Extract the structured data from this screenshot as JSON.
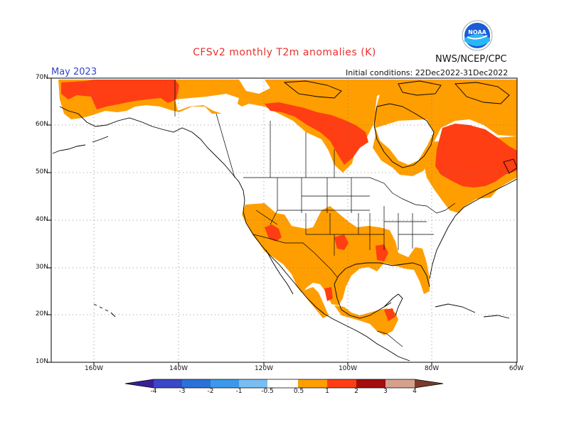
{
  "header": {
    "title": "CFSv2 monthly T2m anomalies (K)",
    "org": "NWS/NCEP/CPC",
    "month": "May 2023",
    "initial_conditions": "Initial conditions: 22Dec2022-31Dec2022"
  },
  "logo": {
    "name": "noaa-logo",
    "text": "NOAA"
  },
  "axes": {
    "lat_labels": [
      "70N",
      "60N",
      "50N",
      "40N",
      "30N",
      "20N",
      "10N"
    ],
    "lon_labels": [
      "160W",
      "140W",
      "120W",
      "100W",
      "80W",
      "60W"
    ]
  },
  "colorbar": {
    "labels": [
      "-4",
      "-3",
      "-2",
      "-1",
      "-0.5",
      "0.5",
      "1",
      "2",
      "3",
      "4"
    ],
    "colors": [
      "#3a1f96",
      "#3c46c8",
      "#2b72d8",
      "#3c99ea",
      "#78bdf3",
      "#ffffff",
      "#ff9e00",
      "#ff3e13",
      "#a40d0d",
      "#d6a08e",
      "#7a3c2c"
    ]
  },
  "legend_colors": {
    "anomaly_0_5_to_1": "#ff9e00",
    "anomaly_1_to_2": "#ff3e13",
    "coast_and_borders": "#000000"
  }
}
